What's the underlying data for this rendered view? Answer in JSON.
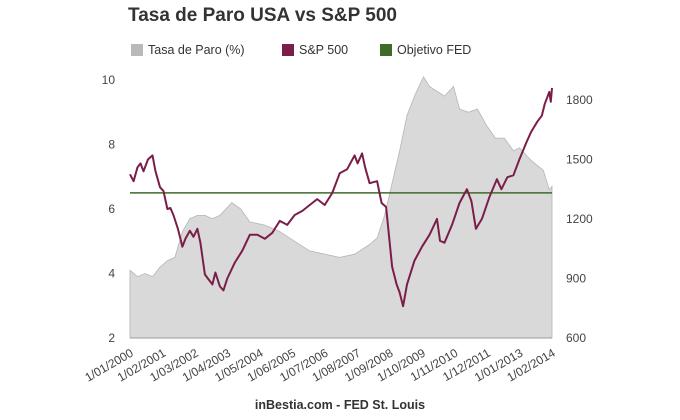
{
  "chart_data": {
    "type": "line",
    "title": "Tasa de Paro USA vs S&P 500",
    "source": "inBestia.com - FED St. Louis",
    "legend_position": "top-left",
    "grid": false,
    "x_ticks": [
      "1/01/2000",
      "1/02/2001",
      "1/03/2002",
      "1/04/2003",
      "1/05/2004",
      "1/06/2005",
      "1/07/2006",
      "1/08/2007",
      "1/09/2008",
      "1/10/2009",
      "1/11/2010",
      "1/12/2011",
      "1/01/2013",
      "1/02/2014"
    ],
    "x_range": [
      2000.0,
      2014.09
    ],
    "y_left": {
      "range": [
        2,
        10
      ],
      "ticks": [
        "2",
        "4",
        "6",
        "8",
        "10"
      ]
    },
    "y_right": {
      "range": [
        600,
        1900
      ],
      "ticks": [
        "600",
        "900",
        "1200",
        "1500",
        "1800"
      ]
    },
    "series": [
      {
        "name": "Tasa de Paro (%)",
        "kind": "area",
        "axis": "left",
        "color": "#b5b5b5",
        "fill": "#d9d9d9",
        "points": [
          [
            2000.0,
            4.1
          ],
          [
            2000.25,
            3.9
          ],
          [
            2000.5,
            4.0
          ],
          [
            2000.75,
            3.9
          ],
          [
            2001.0,
            4.2
          ],
          [
            2001.25,
            4.4
          ],
          [
            2001.5,
            4.5
          ],
          [
            2001.75,
            5.3
          ],
          [
            2002.0,
            5.7
          ],
          [
            2002.25,
            5.8
          ],
          [
            2002.5,
            5.8
          ],
          [
            2002.75,
            5.7
          ],
          [
            2003.0,
            5.8
          ],
          [
            2003.4,
            6.2
          ],
          [
            2003.7,
            6.0
          ],
          [
            2004.0,
            5.6
          ],
          [
            2004.5,
            5.5
          ],
          [
            2005.0,
            5.3
          ],
          [
            2005.5,
            5.0
          ],
          [
            2006.0,
            4.7
          ],
          [
            2006.5,
            4.6
          ],
          [
            2007.0,
            4.5
          ],
          [
            2007.5,
            4.6
          ],
          [
            2008.0,
            4.9
          ],
          [
            2008.25,
            5.1
          ],
          [
            2008.5,
            5.8
          ],
          [
            2008.75,
            6.8
          ],
          [
            2009.0,
            7.8
          ],
          [
            2009.25,
            8.9
          ],
          [
            2009.5,
            9.5
          ],
          [
            2009.8,
            10.1
          ],
          [
            2010.0,
            9.8
          ],
          [
            2010.5,
            9.5
          ],
          [
            2010.8,
            9.8
          ],
          [
            2011.0,
            9.1
          ],
          [
            2011.3,
            9.0
          ],
          [
            2011.6,
            9.1
          ],
          [
            2011.9,
            8.6
          ],
          [
            2012.2,
            8.2
          ],
          [
            2012.5,
            8.2
          ],
          [
            2012.8,
            7.8
          ],
          [
            2013.0,
            7.9
          ],
          [
            2013.4,
            7.5
          ],
          [
            2013.8,
            7.2
          ],
          [
            2014.0,
            6.6
          ],
          [
            2014.09,
            6.7
          ]
        ]
      },
      {
        "name": "S&P 500",
        "kind": "line",
        "axis": "right",
        "color": "#7a1d4a",
        "points": [
          [
            2000.0,
            1425
          ],
          [
            2000.12,
            1390
          ],
          [
            2000.25,
            1460
          ],
          [
            2000.35,
            1480
          ],
          [
            2000.45,
            1440
          ],
          [
            2000.6,
            1500
          ],
          [
            2000.75,
            1520
          ],
          [
            2000.85,
            1440
          ],
          [
            2001.0,
            1360
          ],
          [
            2001.12,
            1340
          ],
          [
            2001.25,
            1250
          ],
          [
            2001.35,
            1255
          ],
          [
            2001.45,
            1220
          ],
          [
            2001.6,
            1150
          ],
          [
            2001.75,
            1060
          ],
          [
            2001.85,
            1100
          ],
          [
            2002.0,
            1140
          ],
          [
            2002.12,
            1110
          ],
          [
            2002.25,
            1150
          ],
          [
            2002.35,
            1080
          ],
          [
            2002.5,
            920
          ],
          [
            2002.6,
            900
          ],
          [
            2002.75,
            870
          ],
          [
            2002.85,
            930
          ],
          [
            2003.0,
            860
          ],
          [
            2003.12,
            840
          ],
          [
            2003.25,
            900
          ],
          [
            2003.5,
            980
          ],
          [
            2003.75,
            1040
          ],
          [
            2004.0,
            1120
          ],
          [
            2004.25,
            1120
          ],
          [
            2004.5,
            1100
          ],
          [
            2004.75,
            1130
          ],
          [
            2005.0,
            1190
          ],
          [
            2005.25,
            1170
          ],
          [
            2005.5,
            1220
          ],
          [
            2005.75,
            1240
          ],
          [
            2006.0,
            1270
          ],
          [
            2006.25,
            1300
          ],
          [
            2006.5,
            1270
          ],
          [
            2006.75,
            1330
          ],
          [
            2007.0,
            1430
          ],
          [
            2007.25,
            1450
          ],
          [
            2007.5,
            1520
          ],
          [
            2007.6,
            1480
          ],
          [
            2007.75,
            1530
          ],
          [
            2007.85,
            1460
          ],
          [
            2008.0,
            1380
          ],
          [
            2008.25,
            1390
          ],
          [
            2008.4,
            1280
          ],
          [
            2008.55,
            1260
          ],
          [
            2008.75,
            960
          ],
          [
            2008.9,
            870
          ],
          [
            2009.0,
            830
          ],
          [
            2009.12,
            760
          ],
          [
            2009.25,
            870
          ],
          [
            2009.5,
            990
          ],
          [
            2009.75,
            1060
          ],
          [
            2010.0,
            1120
          ],
          [
            2010.25,
            1200
          ],
          [
            2010.35,
            1090
          ],
          [
            2010.5,
            1080
          ],
          [
            2010.75,
            1170
          ],
          [
            2011.0,
            1280
          ],
          [
            2011.25,
            1350
          ],
          [
            2011.4,
            1290
          ],
          [
            2011.55,
            1150
          ],
          [
            2011.75,
            1200
          ],
          [
            2012.0,
            1310
          ],
          [
            2012.25,
            1400
          ],
          [
            2012.4,
            1350
          ],
          [
            2012.6,
            1410
          ],
          [
            2012.8,
            1420
          ],
          [
            2013.0,
            1500
          ],
          [
            2013.25,
            1590
          ],
          [
            2013.4,
            1640
          ],
          [
            2013.6,
            1690
          ],
          [
            2013.75,
            1720
          ],
          [
            2013.85,
            1780
          ],
          [
            2014.0,
            1840
          ],
          [
            2014.05,
            1790
          ],
          [
            2014.09,
            1860
          ]
        ]
      },
      {
        "name": "Objetivo FED",
        "kind": "line",
        "axis": "left",
        "color": "#3e6b2a",
        "points": [
          [
            2000.0,
            6.5
          ],
          [
            2014.09,
            6.5
          ]
        ]
      }
    ]
  }
}
